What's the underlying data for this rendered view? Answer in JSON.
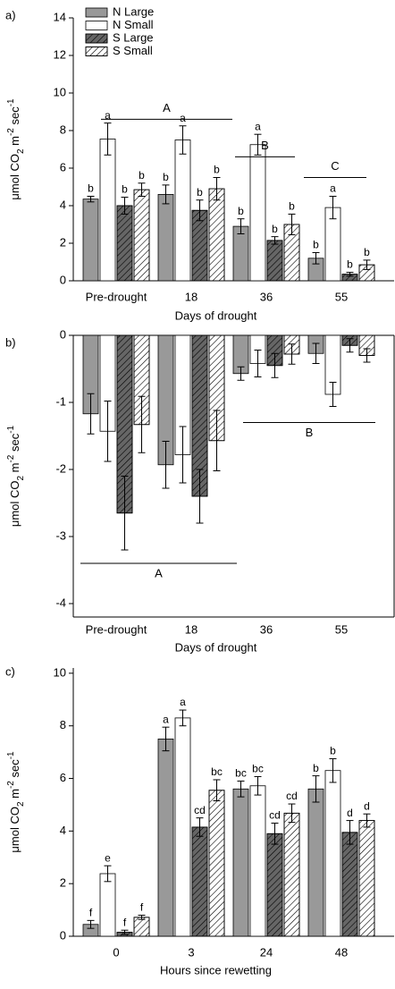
{
  "chart_data": [
    {
      "type": "bar",
      "panel_label": "a)",
      "xlabel": "Days of drought",
      "ylabel": [
        "μmol CO",
        "2",
        " m",
        "-2",
        " sec",
        "-1"
      ],
      "categories": [
        "Pre-drought",
        "18",
        "36",
        "55"
      ],
      "ylim": [
        0,
        14
      ],
      "yticks": [
        0,
        2,
        4,
        6,
        8,
        10,
        12,
        14
      ],
      "legend": "upper left",
      "group_labels": [
        "A",
        "B",
        "C"
      ],
      "series": [
        {
          "name": "N Large",
          "color": "#999999",
          "hatch": false,
          "values": [
            4.35,
            4.6,
            2.9,
            1.2
          ],
          "errors": [
            0.15,
            0.5,
            0.4,
            0.3
          ],
          "labels": [
            "b",
            "b",
            "b",
            "b"
          ]
        },
        {
          "name": "N Small",
          "color": "#ffffff",
          "hatch": false,
          "values": [
            7.55,
            7.5,
            7.25,
            3.9
          ],
          "errors": [
            0.85,
            0.75,
            0.55,
            0.6
          ],
          "labels": [
            "a",
            "a",
            "a",
            "a"
          ]
        },
        {
          "name": "S Large",
          "color": "#666666",
          "hatch": true,
          "values": [
            4.0,
            3.75,
            2.15,
            0.35
          ],
          "errors": [
            0.45,
            0.55,
            0.2,
            0.1
          ],
          "labels": [
            "b",
            "b",
            "b",
            "b"
          ]
        },
        {
          "name": "S Small",
          "color": "#ffffff",
          "hatch": true,
          "values": [
            4.85,
            4.9,
            3.0,
            0.85
          ],
          "errors": [
            0.35,
            0.6,
            0.55,
            0.25
          ],
          "labels": [
            "b",
            "b",
            "b",
            "b"
          ]
        }
      ]
    },
    {
      "type": "bar",
      "panel_label": "b)",
      "xlabel": "Days of drought",
      "ylabel": [
        "μmol CO",
        "2",
        " m",
        "-2",
        " sec",
        "-1"
      ],
      "categories": [
        "Pre-drought",
        "18",
        "36",
        "55"
      ],
      "ylim": [
        -4.2,
        0
      ],
      "yticks": [
        -4,
        -3,
        -2,
        -1,
        0
      ],
      "group_labels": [
        "A",
        "B"
      ],
      "series": [
        {
          "name": "N Large",
          "color": "#999999",
          "hatch": false,
          "values": [
            -1.17,
            -1.93,
            -0.57,
            -0.27
          ],
          "errors": [
            0.3,
            0.35,
            0.1,
            0.15
          ]
        },
        {
          "name": "N Small",
          "color": "#ffffff",
          "hatch": false,
          "values": [
            -1.43,
            -1.78,
            -0.42,
            -0.88
          ],
          "errors": [
            0.45,
            0.42,
            0.2,
            0.18
          ]
        },
        {
          "name": "S Large",
          "color": "#666666",
          "hatch": true,
          "values": [
            -2.65,
            -2.4,
            -0.45,
            -0.15
          ],
          "errors": [
            0.55,
            0.4,
            0.18,
            0.1
          ]
        },
        {
          "name": "S Small",
          "color": "#ffffff",
          "hatch": true,
          "values": [
            -1.33,
            -1.57,
            -0.28,
            -0.3
          ],
          "errors": [
            0.42,
            0.45,
            0.15,
            0.1
          ]
        }
      ]
    },
    {
      "type": "bar",
      "panel_label": "c)",
      "xlabel": "Hours since rewetting",
      "ylabel": [
        "μmol CO",
        "2",
        " m",
        "-2",
        " sec",
        "-1"
      ],
      "categories": [
        "0",
        "3",
        "24",
        "48"
      ],
      "ylim": [
        0,
        10.2
      ],
      "yticks": [
        0,
        2,
        4,
        6,
        8,
        10
      ],
      "series": [
        {
          "name": "N Large",
          "color": "#999999",
          "hatch": false,
          "values": [
            0.45,
            7.5,
            5.6,
            5.6
          ],
          "errors": [
            0.15,
            0.45,
            0.3,
            0.5
          ],
          "labels": [
            "f",
            "a",
            "bc",
            "b"
          ]
        },
        {
          "name": "N Small",
          "color": "#ffffff",
          "hatch": false,
          "values": [
            2.38,
            8.3,
            5.72,
            6.3
          ],
          "errors": [
            0.3,
            0.3,
            0.35,
            0.45
          ],
          "labels": [
            "e",
            "a",
            "bc",
            "b"
          ]
        },
        {
          "name": "S Large",
          "color": "#666666",
          "hatch": true,
          "values": [
            0.15,
            4.15,
            3.9,
            3.95
          ],
          "errors": [
            0.08,
            0.35,
            0.4,
            0.45
          ],
          "labels": [
            "f",
            "cd",
            "cd",
            "d"
          ]
        },
        {
          "name": "S Small",
          "color": "#ffffff",
          "hatch": true,
          "values": [
            0.72,
            5.55,
            4.68,
            4.4
          ],
          "errors": [
            0.08,
            0.4,
            0.35,
            0.25
          ],
          "labels": [
            "f",
            "bc",
            "cd",
            "d"
          ]
        }
      ]
    }
  ]
}
